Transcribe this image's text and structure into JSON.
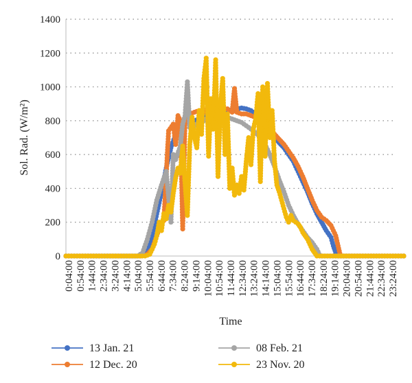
{
  "chart_data": {
    "type": "line",
    "xlabel": "Time",
    "ylabel": "Sol. Rad. (W/m²)",
    "ylim": [
      0,
      1400
    ],
    "yticks": [
      0,
      200,
      400,
      600,
      800,
      1000,
      1200,
      1400
    ],
    "x_range_minutes": [
      4,
      1404
    ],
    "x_ticks": [
      "0:04:00",
      "0:54:00",
      "1:44:00",
      "2:34:00",
      "3:24:00",
      "4:14:00",
      "5:04:00",
      "5:54:00",
      "6:44:00",
      "7:34:00",
      "8:24:00",
      "9:14:00",
      "10:04:00",
      "10:54:00",
      "11:44:00",
      "12:34:00",
      "13:24:00",
      "14:14:00",
      "15:04:00",
      "15:54:00",
      "16:44:00",
      "17:34:00",
      "18:24:00",
      "19:14:00",
      "20:04:00",
      "20:54:00",
      "21:44:00",
      "22:34:00",
      "23:24:00"
    ],
    "grid": "horizontal dotted",
    "legend_position": "bottom",
    "series": [
      {
        "name": "13 Jan. 21",
        "color": "#4472C4",
        "points": [
          [
            "0:04",
            0
          ],
          [
            "5:00",
            0
          ],
          [
            "5:30",
            2
          ],
          [
            "5:50",
            30
          ],
          [
            "6:10",
            120
          ],
          [
            "6:30",
            250
          ],
          [
            "6:50",
            380
          ],
          [
            "7:10",
            520
          ],
          [
            "7:30",
            640
          ],
          [
            "7:50",
            720
          ],
          [
            "8:10",
            770
          ],
          [
            "8:30",
            800
          ],
          [
            "8:50",
            790
          ],
          [
            "9:10",
            800
          ],
          [
            "9:30",
            810
          ],
          [
            "9:50",
            820
          ],
          [
            "10:10",
            830
          ],
          [
            "10:30",
            840
          ],
          [
            "10:50",
            850
          ],
          [
            "11:10",
            855
          ],
          [
            "11:30",
            860
          ],
          [
            "11:50",
            865
          ],
          [
            "12:10",
            870
          ],
          [
            "12:30",
            875
          ],
          [
            "12:50",
            870
          ],
          [
            "13:10",
            860
          ],
          [
            "13:30",
            840
          ],
          [
            "13:50",
            810
          ],
          [
            "14:10",
            780
          ],
          [
            "14:30",
            740
          ],
          [
            "14:50",
            700
          ],
          [
            "15:10",
            670
          ],
          [
            "15:30",
            640
          ],
          [
            "15:50",
            600
          ],
          [
            "16:10",
            560
          ],
          [
            "16:30",
            500
          ],
          [
            "16:50",
            440
          ],
          [
            "17:10",
            380
          ],
          [
            "17:30",
            310
          ],
          [
            "17:50",
            250
          ],
          [
            "18:10",
            200
          ],
          [
            "18:30",
            150
          ],
          [
            "18:50",
            110
          ],
          [
            "19:00",
            60
          ],
          [
            "19:10",
            20
          ],
          [
            "19:20",
            0
          ],
          [
            "23:59",
            0
          ]
        ]
      },
      {
        "name": "12 Dec. 20",
        "color": "#ED7D31",
        "points": [
          [
            "0:04",
            0
          ],
          [
            "5:20",
            0
          ],
          [
            "5:50",
            10
          ],
          [
            "6:10",
            40
          ],
          [
            "6:30",
            120
          ],
          [
            "6:50",
            200
          ],
          [
            "7:00",
            210
          ],
          [
            "7:20",
            740
          ],
          [
            "7:40",
            780
          ],
          [
            "7:50",
            660
          ],
          [
            "8:00",
            830
          ],
          [
            "8:10",
            800
          ],
          [
            "8:20",
            160
          ],
          [
            "8:30",
            820
          ],
          [
            "8:50",
            840
          ],
          [
            "9:10",
            850
          ],
          [
            "9:30",
            860
          ],
          [
            "9:50",
            850
          ],
          [
            "10:10",
            880
          ],
          [
            "10:30",
            870
          ],
          [
            "10:50",
            880
          ],
          [
            "11:10",
            870
          ],
          [
            "11:30",
            870
          ],
          [
            "11:50",
            850
          ],
          [
            "12:00",
            990
          ],
          [
            "12:10",
            850
          ],
          [
            "12:30",
            840
          ],
          [
            "12:50",
            840
          ],
          [
            "13:10",
            830
          ],
          [
            "13:30",
            820
          ],
          [
            "13:50",
            800
          ],
          [
            "14:10",
            780
          ],
          [
            "14:30",
            750
          ],
          [
            "14:50",
            720
          ],
          [
            "15:10",
            690
          ],
          [
            "15:30",
            660
          ],
          [
            "15:50",
            620
          ],
          [
            "16:10",
            580
          ],
          [
            "16:30",
            530
          ],
          [
            "16:50",
            470
          ],
          [
            "17:10",
            400
          ],
          [
            "17:30",
            330
          ],
          [
            "17:50",
            270
          ],
          [
            "18:10",
            230
          ],
          [
            "18:30",
            210
          ],
          [
            "18:50",
            180
          ],
          [
            "19:00",
            150
          ],
          [
            "19:10",
            120
          ],
          [
            "19:20",
            60
          ],
          [
            "19:30",
            0
          ],
          [
            "23:59",
            0
          ]
        ]
      },
      {
        "name": "08 Feb. 21",
        "color": "#A5A5A5",
        "points": [
          [
            "0:04",
            0
          ],
          [
            "5:10",
            0
          ],
          [
            "5:30",
            20
          ],
          [
            "5:50",
            100
          ],
          [
            "6:10",
            200
          ],
          [
            "6:30",
            330
          ],
          [
            "6:50",
            420
          ],
          [
            "7:10",
            500
          ],
          [
            "7:30",
            200
          ],
          [
            "7:40",
            600
          ],
          [
            "7:50",
            570
          ],
          [
            "8:10",
            650
          ],
          [
            "8:20",
            780
          ],
          [
            "8:30",
            830
          ],
          [
            "8:40",
            1030
          ],
          [
            "8:50",
            760
          ],
          [
            "9:10",
            770
          ],
          [
            "9:30",
            790
          ],
          [
            "9:50",
            800
          ],
          [
            "10:10",
            820
          ],
          [
            "10:30",
            830
          ],
          [
            "10:50",
            830
          ],
          [
            "11:10",
            830
          ],
          [
            "11:30",
            820
          ],
          [
            "11:50",
            810
          ],
          [
            "12:10",
            800
          ],
          [
            "12:30",
            790
          ],
          [
            "12:50",
            770
          ],
          [
            "13:10",
            750
          ],
          [
            "13:30",
            730
          ],
          [
            "13:50",
            700
          ],
          [
            "14:10",
            660
          ],
          [
            "14:30",
            600
          ],
          [
            "14:50",
            530
          ],
          [
            "15:10",
            450
          ],
          [
            "15:30",
            380
          ],
          [
            "15:50",
            300
          ],
          [
            "16:10",
            240
          ],
          [
            "16:30",
            190
          ],
          [
            "16:50",
            150
          ],
          [
            "17:10",
            110
          ],
          [
            "17:30",
            80
          ],
          [
            "17:50",
            40
          ],
          [
            "18:00",
            10
          ],
          [
            "18:10",
            0
          ],
          [
            "23:59",
            0
          ]
        ]
      },
      {
        "name": "23 Nov. 20",
        "color": "#F2B90C",
        "points": [
          [
            "0:04",
            0
          ],
          [
            "5:40",
            0
          ],
          [
            "6:00",
            10
          ],
          [
            "6:10",
            40
          ],
          [
            "6:20",
            70
          ],
          [
            "6:30",
            120
          ],
          [
            "6:40",
            200
          ],
          [
            "6:50",
            150
          ],
          [
            "7:00",
            250
          ],
          [
            "7:10",
            220
          ],
          [
            "7:20",
            300
          ],
          [
            "7:30",
            260
          ],
          [
            "7:40",
            370
          ],
          [
            "7:50",
            460
          ],
          [
            "8:00",
            520
          ],
          [
            "8:10",
            490
          ],
          [
            "8:20",
            650
          ],
          [
            "8:30",
            430
          ],
          [
            "8:40",
            240
          ],
          [
            "8:50",
            660
          ],
          [
            "9:00",
            820
          ],
          [
            "9:10",
            700
          ],
          [
            "9:20",
            640
          ],
          [
            "9:30",
            860
          ],
          [
            "9:40",
            720
          ],
          [
            "9:50",
            1050
          ],
          [
            "10:00",
            1170
          ],
          [
            "10:10",
            590
          ],
          [
            "10:20",
            930
          ],
          [
            "10:30",
            750
          ],
          [
            "10:40",
            1160
          ],
          [
            "10:50",
            470
          ],
          [
            "11:00",
            880
          ],
          [
            "11:10",
            1050
          ],
          [
            "11:20",
            600
          ],
          [
            "11:30",
            840
          ],
          [
            "11:40",
            400
          ],
          [
            "11:50",
            520
          ],
          [
            "12:00",
            360
          ],
          [
            "12:10",
            420
          ],
          [
            "12:20",
            370
          ],
          [
            "12:30",
            470
          ],
          [
            "12:40",
            390
          ],
          [
            "12:50",
            560
          ],
          [
            "13:00",
            700
          ],
          [
            "13:10",
            540
          ],
          [
            "13:20",
            750
          ],
          [
            "13:30",
            810
          ],
          [
            "13:40",
            960
          ],
          [
            "13:50",
            440
          ],
          [
            "14:00",
            1000
          ],
          [
            "14:10",
            590
          ],
          [
            "14:20",
            1020
          ],
          [
            "14:30",
            700
          ],
          [
            "14:40",
            860
          ],
          [
            "14:50",
            560
          ],
          [
            "15:00",
            420
          ],
          [
            "15:10",
            380
          ],
          [
            "15:20",
            330
          ],
          [
            "15:30",
            280
          ],
          [
            "15:40",
            230
          ],
          [
            "15:50",
            200
          ],
          [
            "16:00",
            240
          ],
          [
            "16:10",
            210
          ],
          [
            "16:20",
            200
          ],
          [
            "16:30",
            190
          ],
          [
            "16:40",
            170
          ],
          [
            "16:50",
            140
          ],
          [
            "17:00",
            120
          ],
          [
            "17:10",
            100
          ],
          [
            "17:20",
            70
          ],
          [
            "17:30",
            40
          ],
          [
            "17:40",
            20
          ],
          [
            "17:50",
            0
          ],
          [
            "23:59",
            0
          ]
        ]
      }
    ]
  }
}
